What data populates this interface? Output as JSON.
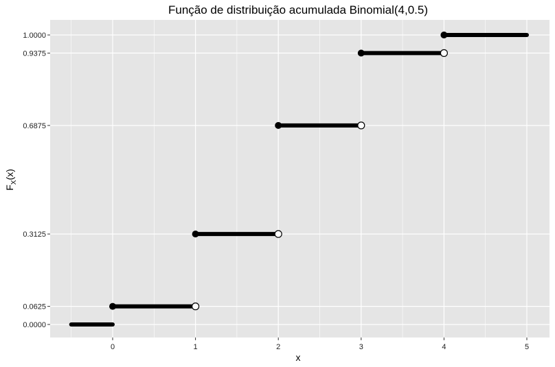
{
  "chart_data": {
    "type": "step",
    "title": "Função de distribuição acumulada Binomial(4,0.5)",
    "xlabel": "x",
    "ylabel": {
      "main": "F",
      "sub": "X",
      "rest": "(x)"
    },
    "xlim": [
      -0.5,
      5
    ],
    "ylim": [
      0,
      1
    ],
    "x_ticks": [
      "0",
      "1",
      "2",
      "3",
      "4",
      "5"
    ],
    "y_ticks": [
      "0.0000",
      "0.0625",
      "0.3125",
      "0.6875",
      "0.9375",
      "1.0000"
    ],
    "y_tick_values": [
      0,
      0.0625,
      0.3125,
      0.6875,
      0.9375,
      1.0
    ],
    "segments": [
      {
        "x_start": -0.5,
        "x_end": 0,
        "y": 0.0,
        "closed_start": false,
        "open_end": false
      },
      {
        "x_start": 0,
        "x_end": 1,
        "y": 0.0625,
        "closed_start": true,
        "open_end": true
      },
      {
        "x_start": 1,
        "x_end": 2,
        "y": 0.3125,
        "closed_start": true,
        "open_end": true
      },
      {
        "x_start": 2,
        "x_end": 3,
        "y": 0.6875,
        "closed_start": true,
        "open_end": true
      },
      {
        "x_start": 3,
        "x_end": 4,
        "y": 0.9375,
        "closed_start": true,
        "open_end": true
      },
      {
        "x_start": 4,
        "x_end": 5,
        "y": 1.0,
        "closed_start": true,
        "open_end": false
      }
    ],
    "grid": true,
    "colors": {
      "panel": "#e5e5e5",
      "grid": "#ffffff",
      "line": "#000000",
      "open_point_fill": "#ffffff"
    }
  }
}
